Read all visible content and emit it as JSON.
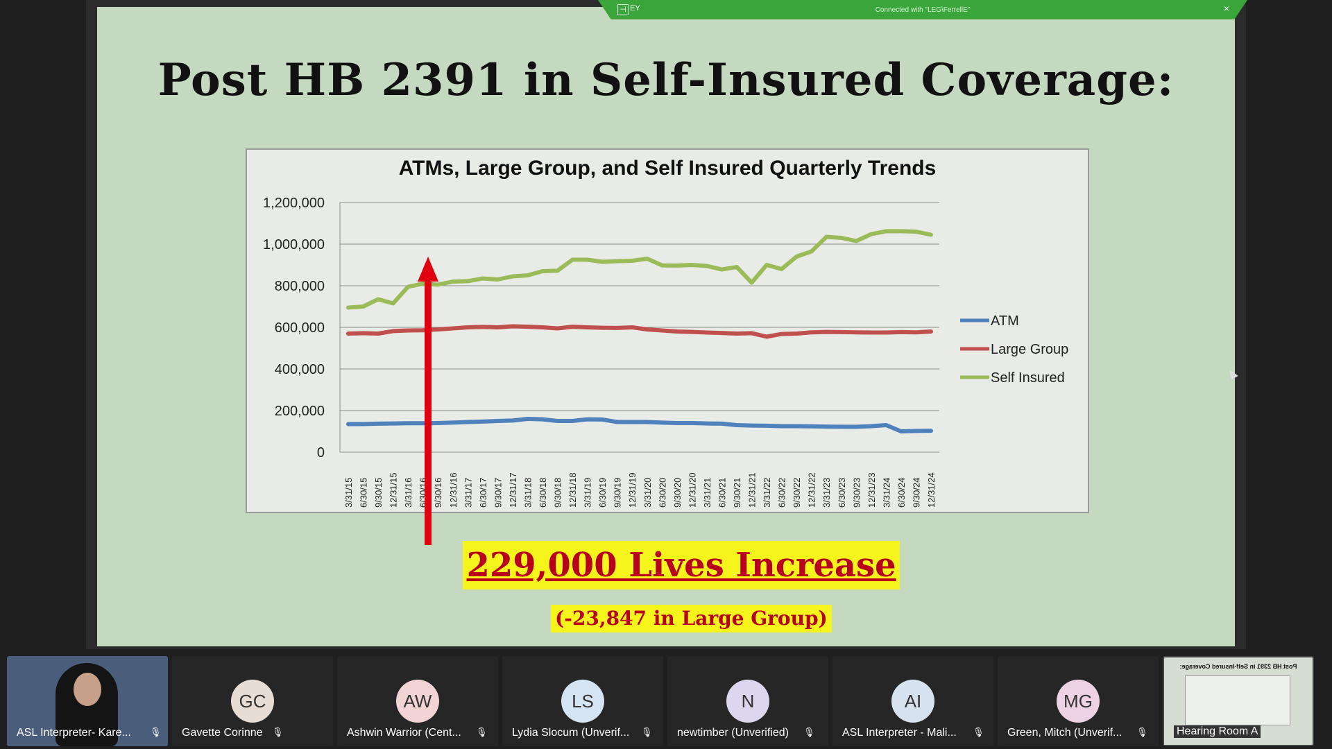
{
  "connection_bar": {
    "host": "EY",
    "status": "Connected with \"LEG\\FerrellE\""
  },
  "slide": {
    "title": "Post HB 2391 in Self-Insured Coverage:",
    "banner": "229,000 Lives Increase",
    "subbanner": "(-23,847 in Large Group)"
  },
  "chart_data": {
    "type": "line",
    "title": "ATMs, Large Group, and Self Insured Quarterly Trends",
    "ylim": [
      0,
      1200000
    ],
    "yticks": [
      "0",
      "200,000",
      "400,000",
      "600,000",
      "800,000",
      "1,000,000",
      "1,200,000"
    ],
    "grid": true,
    "legend_position": "right",
    "categories": [
      "3/31/15",
      "6/30/15",
      "9/30/15",
      "12/31/15",
      "3/31/16",
      "6/30/16",
      "9/30/16",
      "12/31/16",
      "3/31/17",
      "6/30/17",
      "9/30/17",
      "12/31/17",
      "3/31/18",
      "6/30/18",
      "9/30/18",
      "12/31/18",
      "3/31/19",
      "6/30/19",
      "9/30/19",
      "12/31/19",
      "3/31/20",
      "6/30/20",
      "9/30/20",
      "12/31/20",
      "3/31/21",
      "6/30/21",
      "9/30/21",
      "12/31/21",
      "3/31/22",
      "6/30/22",
      "9/30/22",
      "12/31/22",
      "3/31/23",
      "6/30/23",
      "9/30/23",
      "12/31/23",
      "3/31/24",
      "6/30/24",
      "9/30/24",
      "12/31/24"
    ],
    "series": [
      {
        "name": "ATM",
        "color": "#4f81bd",
        "values": [
          135000,
          135000,
          137000,
          138000,
          139000,
          139000,
          140000,
          142000,
          145000,
          147000,
          150000,
          152000,
          160000,
          158000,
          150000,
          150000,
          158000,
          157000,
          145000,
          145000,
          145000,
          142000,
          140000,
          140000,
          138000,
          137000,
          130000,
          128000,
          127000,
          125000,
          125000,
          124000,
          123000,
          122000,
          122000,
          125000,
          130000,
          100000,
          102000,
          103000
        ]
      },
      {
        "name": "Large Group",
        "color": "#c0504d",
        "values": [
          570000,
          572000,
          570000,
          582000,
          585000,
          586000,
          590000,
          595000,
          600000,
          602000,
          600000,
          605000,
          603000,
          600000,
          595000,
          603000,
          600000,
          598000,
          597000,
          600000,
          590000,
          585000,
          580000,
          578000,
          575000,
          573000,
          570000,
          572000,
          555000,
          568000,
          570000,
          576000,
          578000,
          577000,
          576000,
          575000,
          575000,
          577000,
          576000,
          580000
        ]
      },
      {
        "name": "Self Insured",
        "color": "#9bbb59",
        "values": [
          695000,
          700000,
          735000,
          715000,
          795000,
          810000,
          805000,
          820000,
          822000,
          835000,
          830000,
          845000,
          850000,
          870000,
          872000,
          925000,
          925000,
          915000,
          918000,
          920000,
          930000,
          898000,
          897000,
          900000,
          895000,
          878000,
          890000,
          815000,
          900000,
          880000,
          940000,
          965000,
          1035000,
          1030000,
          1015000,
          1048000,
          1062000,
          1062000,
          1060000,
          1045000
        ]
      }
    ]
  },
  "participants": [
    {
      "name": "ASL Interpreter- Kare...",
      "type": "video"
    },
    {
      "name": "Gavette Corinne",
      "initials": "GC",
      "color": "#e8ddd4"
    },
    {
      "name": "Ashwin Warrior (Cent...",
      "initials": "AW",
      "color": "#f2d4d4"
    },
    {
      "name": "Lydia Slocum (Unverif...",
      "initials": "LS",
      "color": "#d4e4f2"
    },
    {
      "name": "newtimber (Unverified)",
      "initials": "N",
      "color": "#dcd6ee"
    },
    {
      "name": "ASL Interpreter - Mali...",
      "initials": "AI",
      "color": "#d6e2ee"
    },
    {
      "name": "Green, Mitch (Unverif...",
      "initials": "MG",
      "color": "#ecd2e2"
    },
    {
      "name": "Hearing Room A",
      "type": "thumbnail",
      "thumb_title": "Post HB 2391 in Self-Insured Coverage:"
    }
  ]
}
